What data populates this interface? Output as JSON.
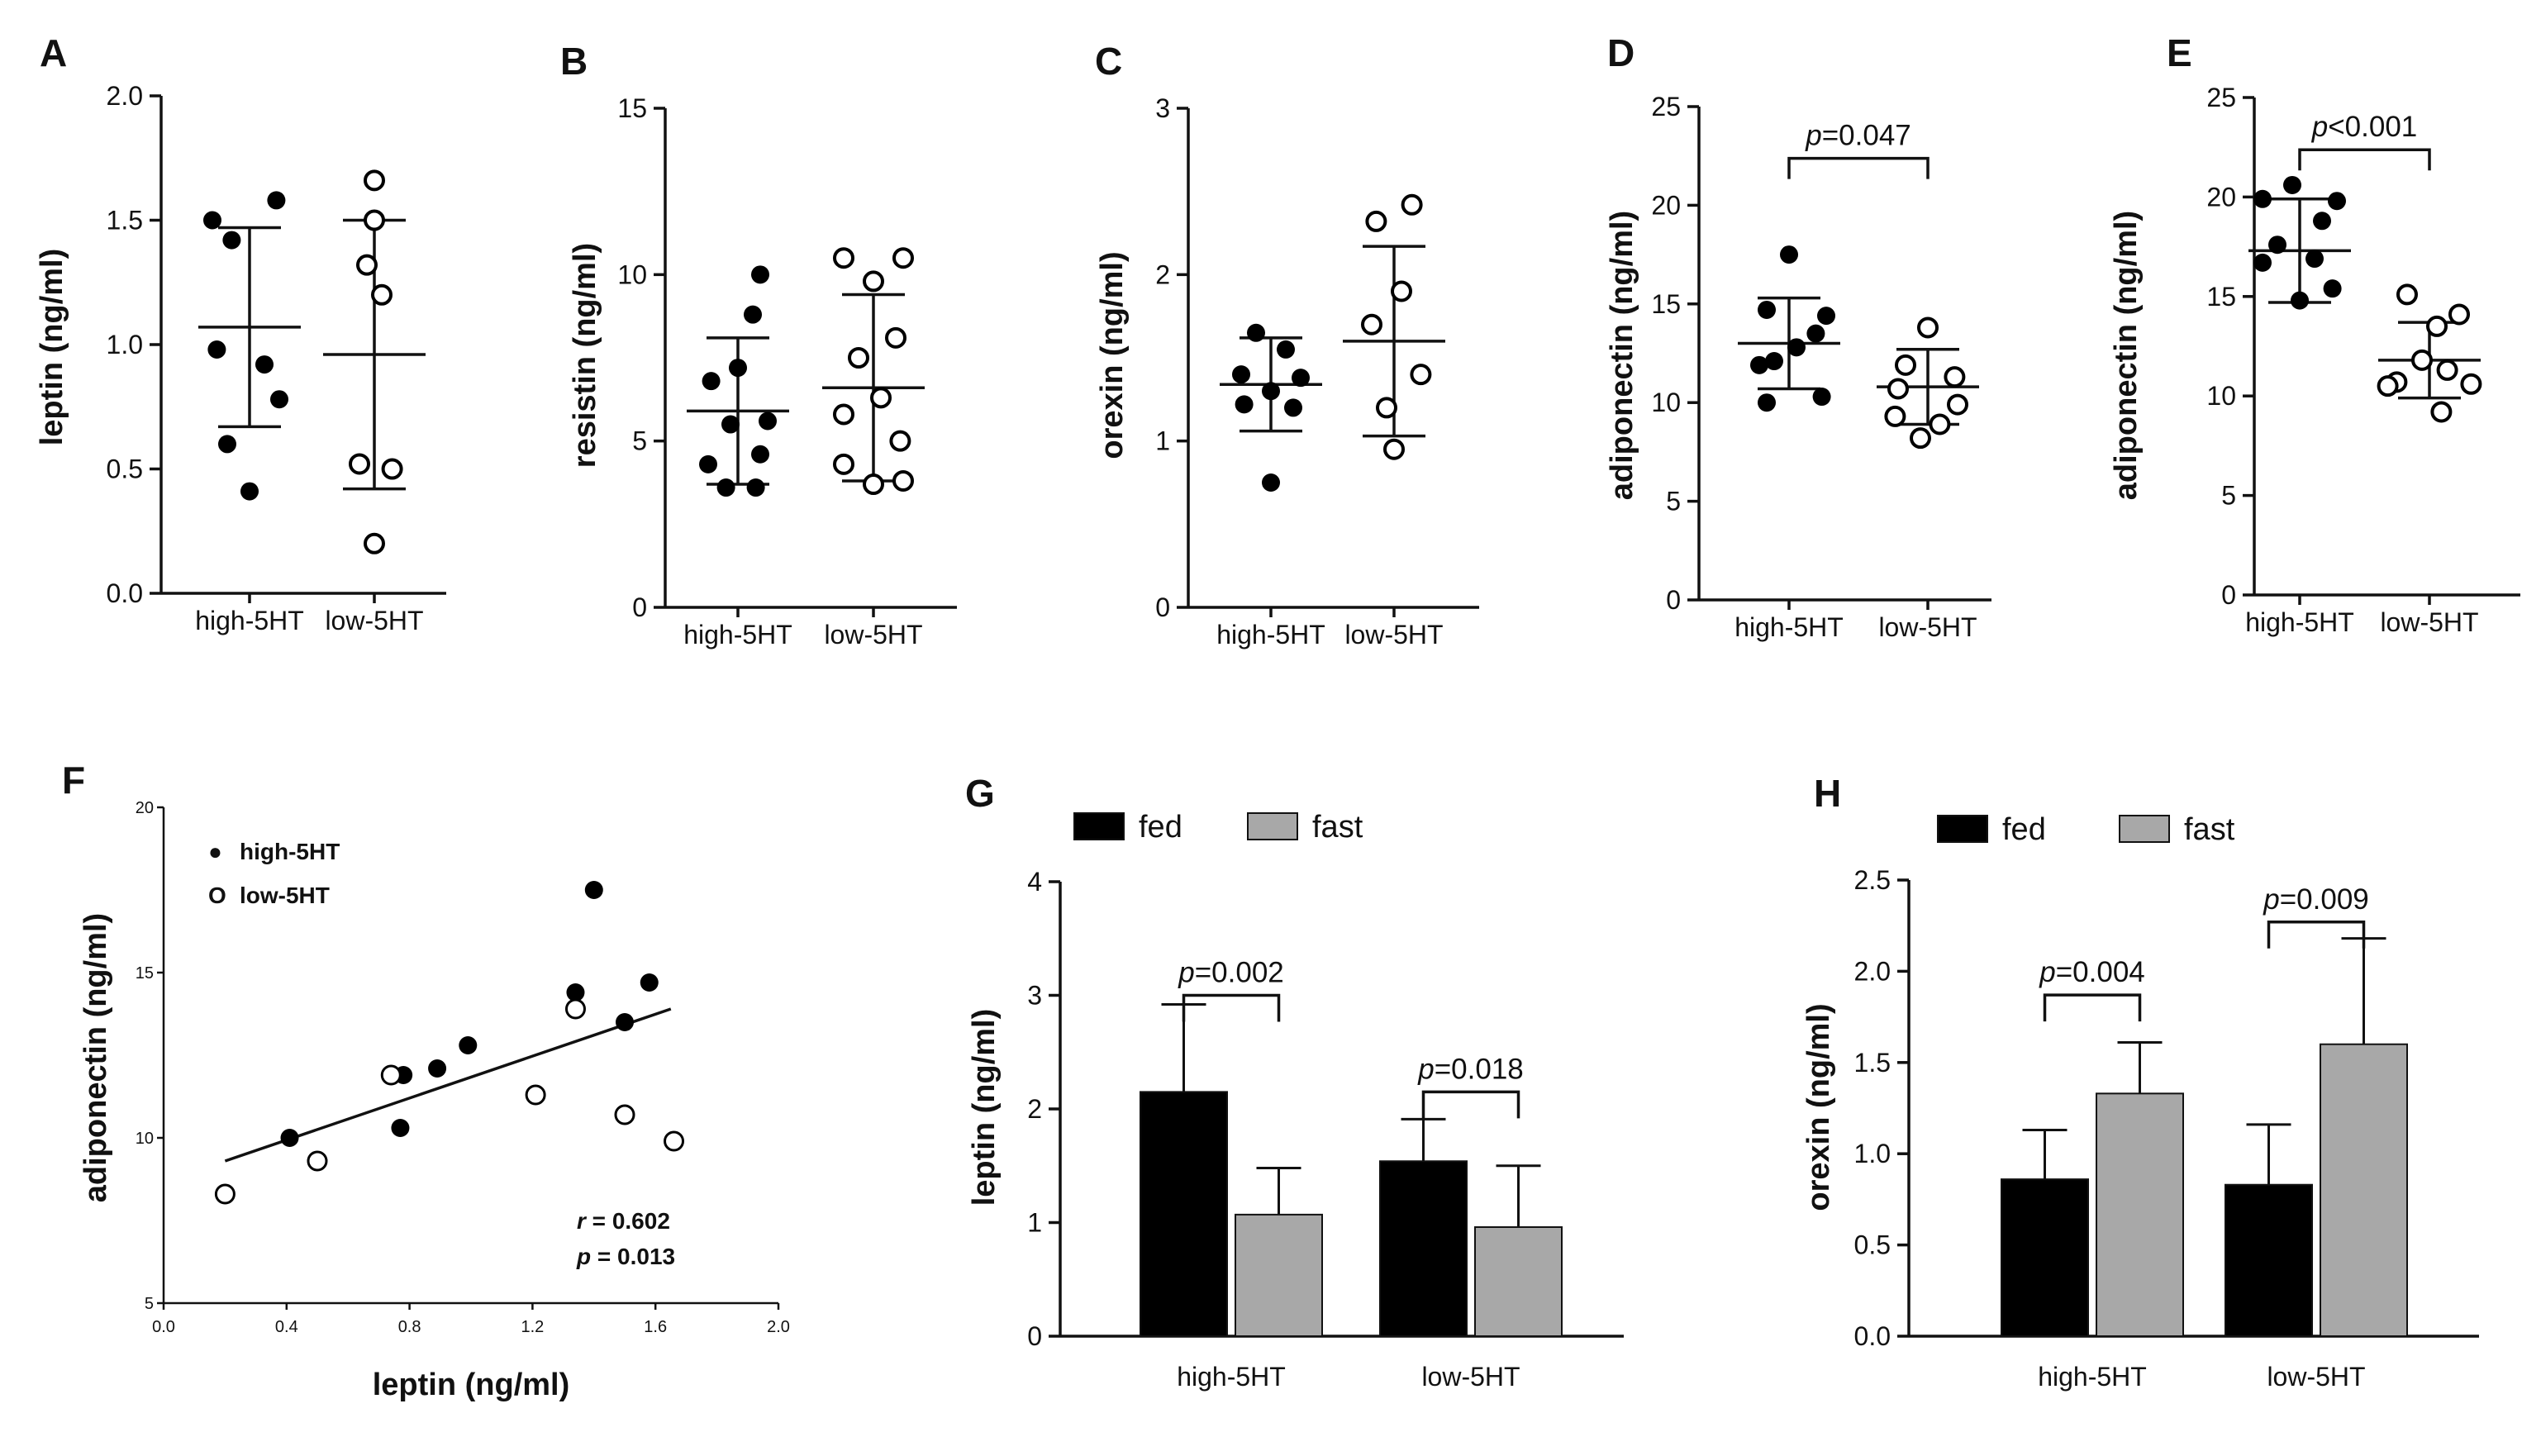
{
  "chart_data": [
    {
      "panel": "A",
      "type": "scatter",
      "ylabel": "leptin (ng/ml)",
      "ylim": [
        0,
        2.0
      ],
      "yticks": [
        "0.0",
        "0.5",
        "1.0",
        "1.5",
        "2.0"
      ],
      "categories": [
        "high-5HT",
        "low-5HT"
      ],
      "groups": [
        {
          "name": "high-5HT",
          "marker": "filled",
          "mean": 1.07,
          "sd": 0.4,
          "points": [
            [
              -0.25,
              1.5
            ],
            [
              0.18,
              1.58
            ],
            [
              -0.12,
              1.42
            ],
            [
              -0.22,
              0.98
            ],
            [
              0.1,
              0.92
            ],
            [
              0.2,
              0.78
            ],
            [
              -0.15,
              0.6
            ],
            [
              0.0,
              0.41
            ]
          ]
        },
        {
          "name": "low-5HT",
          "marker": "open",
          "mean": 0.96,
          "sd": 0.54,
          "points": [
            [
              0.0,
              1.66
            ],
            [
              0.0,
              1.5
            ],
            [
              -0.05,
              1.32
            ],
            [
              0.05,
              1.2
            ],
            [
              -0.1,
              0.52
            ],
            [
              0.12,
              0.5
            ],
            [
              0.0,
              0.2
            ]
          ]
        }
      ]
    },
    {
      "panel": "B",
      "type": "scatter",
      "ylabel": "resistin (ng/ml)",
      "ylim": [
        0,
        15
      ],
      "yticks": [
        "0",
        "5",
        "10",
        "15"
      ],
      "categories": [
        "high-5HT",
        "low-5HT"
      ],
      "groups": [
        {
          "name": "high-5HT",
          "marker": "filled",
          "mean": 5.9,
          "sd": 2.2,
          "points": [
            [
              0.15,
              10.0
            ],
            [
              0.1,
              8.8
            ],
            [
              0.0,
              7.2
            ],
            [
              -0.18,
              6.8
            ],
            [
              0.2,
              5.6
            ],
            [
              -0.05,
              5.5
            ],
            [
              0.15,
              4.6
            ],
            [
              -0.2,
              4.3
            ],
            [
              -0.08,
              3.6
            ],
            [
              0.12,
              3.6
            ]
          ]
        },
        {
          "name": "low-5HT",
          "marker": "open",
          "mean": 6.6,
          "sd": 2.8,
          "points": [
            [
              -0.2,
              10.5
            ],
            [
              0.2,
              10.5
            ],
            [
              0.0,
              9.8
            ],
            [
              0.15,
              8.1
            ],
            [
              -0.1,
              7.5
            ],
            [
              0.05,
              6.3
            ],
            [
              -0.2,
              5.8
            ],
            [
              0.18,
              5.0
            ],
            [
              -0.2,
              4.3
            ],
            [
              0.2,
              3.8
            ],
            [
              0.0,
              3.7
            ]
          ]
        }
      ]
    },
    {
      "panel": "C",
      "type": "scatter",
      "ylabel": "orexin (ng/ml)",
      "ylim": [
        0,
        3
      ],
      "yticks": [
        "0",
        "1",
        "2",
        "3"
      ],
      "categories": [
        "high-5HT",
        "low-5HT"
      ],
      "groups": [
        {
          "name": "high-5HT",
          "marker": "filled",
          "mean": 1.34,
          "sd": 0.28,
          "points": [
            [
              -0.1,
              1.65
            ],
            [
              0.1,
              1.55
            ],
            [
              -0.2,
              1.4
            ],
            [
              0.2,
              1.38
            ],
            [
              0.0,
              1.3
            ],
            [
              -0.18,
              1.22
            ],
            [
              0.15,
              1.2
            ],
            [
              0.0,
              0.75
            ]
          ]
        },
        {
          "name": "low-5HT",
          "marker": "open",
          "mean": 1.6,
          "sd": 0.57,
          "points": [
            [
              0.12,
              2.42
            ],
            [
              -0.12,
              2.32
            ],
            [
              0.05,
              1.9
            ],
            [
              -0.15,
              1.7
            ],
            [
              0.18,
              1.4
            ],
            [
              -0.05,
              1.2
            ],
            [
              0.0,
              0.95
            ]
          ]
        }
      ]
    },
    {
      "panel": "D",
      "type": "scatter",
      "ylabel": "adiponectin (ng/ml)",
      "ylim": [
        0,
        25
      ],
      "yticks": [
        "0",
        "5",
        "10",
        "15",
        "20",
        "25"
      ],
      "categories": [
        "high-5HT",
        "low-5HT"
      ],
      "significance": {
        "text_p": "p",
        "text_rest": "=0.047"
      },
      "groups": [
        {
          "name": "high-5HT",
          "marker": "filled",
          "mean": 13.0,
          "sd": 2.3,
          "points": [
            [
              0.0,
              17.5
            ],
            [
              0.25,
              14.4
            ],
            [
              -0.15,
              14.7
            ],
            [
              0.18,
              13.5
            ],
            [
              0.05,
              12.8
            ],
            [
              -0.1,
              12.1
            ],
            [
              -0.2,
              11.9
            ],
            [
              0.22,
              10.3
            ],
            [
              -0.15,
              10.0
            ]
          ]
        },
        {
          "name": "low-5HT",
          "marker": "open",
          "mean": 10.8,
          "sd": 1.9,
          "points": [
            [
              0.0,
              13.8
            ],
            [
              -0.15,
              11.9
            ],
            [
              0.18,
              11.3
            ],
            [
              -0.2,
              10.7
            ],
            [
              0.2,
              9.9
            ],
            [
              -0.22,
              9.3
            ],
            [
              0.08,
              8.9
            ],
            [
              -0.05,
              8.2
            ]
          ]
        }
      ]
    },
    {
      "panel": "E",
      "type": "scatter",
      "ylabel": "adiponectin (ng/ml)",
      "ylim": [
        0,
        25
      ],
      "yticks": [
        "0",
        "5",
        "10",
        "15",
        "20",
        "25"
      ],
      "categories": [
        "high-5HT",
        "low-5HT"
      ],
      "significance": {
        "text_p": "p",
        "text_rest": "<0.001"
      },
      "groups": [
        {
          "name": "high-5HT",
          "marker": "filled",
          "mean": 17.3,
          "sd": 2.6,
          "points": [
            [
              -0.05,
              20.6
            ],
            [
              -0.25,
              19.9
            ],
            [
              0.25,
              19.8
            ],
            [
              0.15,
              18.8
            ],
            [
              -0.15,
              17.6
            ],
            [
              0.1,
              16.9
            ],
            [
              -0.25,
              16.7
            ],
            [
              0.22,
              15.4
            ],
            [
              0.0,
              14.8
            ]
          ]
        },
        {
          "name": "low-5HT",
          "marker": "open",
          "mean": 11.8,
          "sd": 1.9,
          "points": [
            [
              -0.15,
              15.1
            ],
            [
              0.2,
              14.1
            ],
            [
              0.05,
              13.5
            ],
            [
              -0.05,
              11.8
            ],
            [
              0.12,
              11.3
            ],
            [
              -0.22,
              10.7
            ],
            [
              0.28,
              10.6
            ],
            [
              -0.28,
              10.5
            ],
            [
              0.08,
              9.2
            ]
          ]
        }
      ]
    },
    {
      "panel": "F",
      "type": "scatter",
      "xlabel": "leptin (ng/ml)",
      "ylabel": "adiponectin (ng/ml)",
      "xlim": [
        0,
        2.0
      ],
      "ylim": [
        5,
        20
      ],
      "xticks": [
        "0.0",
        "0.4",
        "0.8",
        "1.2",
        "1.6",
        "2.0"
      ],
      "yticks": [
        "5",
        "10",
        "15",
        "20"
      ],
      "legend": [
        {
          "name": "high-5HT",
          "marker": "filled",
          "symbol": "●"
        },
        {
          "name": "low-5HT",
          "marker": "open",
          "symbol": "O"
        }
      ],
      "fit_line": {
        "x": [
          0.2,
          1.65
        ],
        "y": [
          9.3,
          13.9
        ]
      },
      "stats": {
        "r_label": "r",
        "r_value": " = 0.602",
        "p_label": "p",
        "p_value": " = 0.013"
      },
      "groups": [
        {
          "name": "high-5HT",
          "marker": "filled",
          "points": [
            [
              0.41,
              10.0
            ],
            [
              0.77,
              10.3
            ],
            [
              0.78,
              11.9
            ],
            [
              0.89,
              12.1
            ],
            [
              0.99,
              12.8
            ],
            [
              1.34,
              14.4
            ],
            [
              1.4,
              17.5
            ],
            [
              1.5,
              13.5
            ],
            [
              1.58,
              14.7
            ]
          ]
        },
        {
          "name": "low-5HT",
          "marker": "open",
          "points": [
            [
              0.2,
              8.3
            ],
            [
              0.5,
              9.3
            ],
            [
              0.74,
              11.9
            ],
            [
              1.21,
              11.3
            ],
            [
              1.34,
              13.9
            ],
            [
              1.5,
              10.7
            ],
            [
              1.66,
              9.9
            ]
          ]
        }
      ]
    },
    {
      "panel": "G",
      "type": "bar",
      "ylabel": "leptin (ng/ml)",
      "ylim": [
        0,
        4
      ],
      "yticks": [
        "0",
        "1",
        "2",
        "3",
        "4"
      ],
      "categories": [
        "high-5HT",
        "low-5HT"
      ],
      "legend": [
        "fed",
        "fast"
      ],
      "colors": {
        "fed": "#000000",
        "fast": "#a8a8a8"
      },
      "series": [
        {
          "name": "fed",
          "values": [
            2.15,
            1.54
          ],
          "errors": [
            0.77,
            0.37
          ]
        },
        {
          "name": "fast",
          "values": [
            1.07,
            0.96
          ],
          "errors": [
            0.41,
            0.54
          ]
        }
      ],
      "significance": [
        {
          "category": "high-5HT",
          "text_p": "p",
          "text_rest": "=0.002"
        },
        {
          "category": "low-5HT",
          "text_p": "p",
          "text_rest": "=0.018"
        }
      ]
    },
    {
      "panel": "H",
      "type": "bar",
      "ylabel": "orexin (ng/ml)",
      "ylim": [
        0,
        2.5
      ],
      "yticks": [
        "0.0",
        "0.5",
        "1.0",
        "1.5",
        "2.0",
        "2.5"
      ],
      "categories": [
        "high-5HT",
        "low-5HT"
      ],
      "legend": [
        "fed",
        "fast"
      ],
      "colors": {
        "fed": "#000000",
        "fast": "#a8a8a8"
      },
      "series": [
        {
          "name": "fed",
          "values": [
            0.86,
            0.83
          ],
          "errors": [
            0.27,
            0.33
          ]
        },
        {
          "name": "fast",
          "values": [
            1.33,
            1.6
          ],
          "errors": [
            0.28,
            0.58
          ]
        }
      ],
      "significance": [
        {
          "category": "high-5HT",
          "text_p": "p",
          "text_rest": "=0.004"
        },
        {
          "category": "low-5HT",
          "text_p": "p",
          "text_rest": "=0.009"
        }
      ]
    }
  ]
}
